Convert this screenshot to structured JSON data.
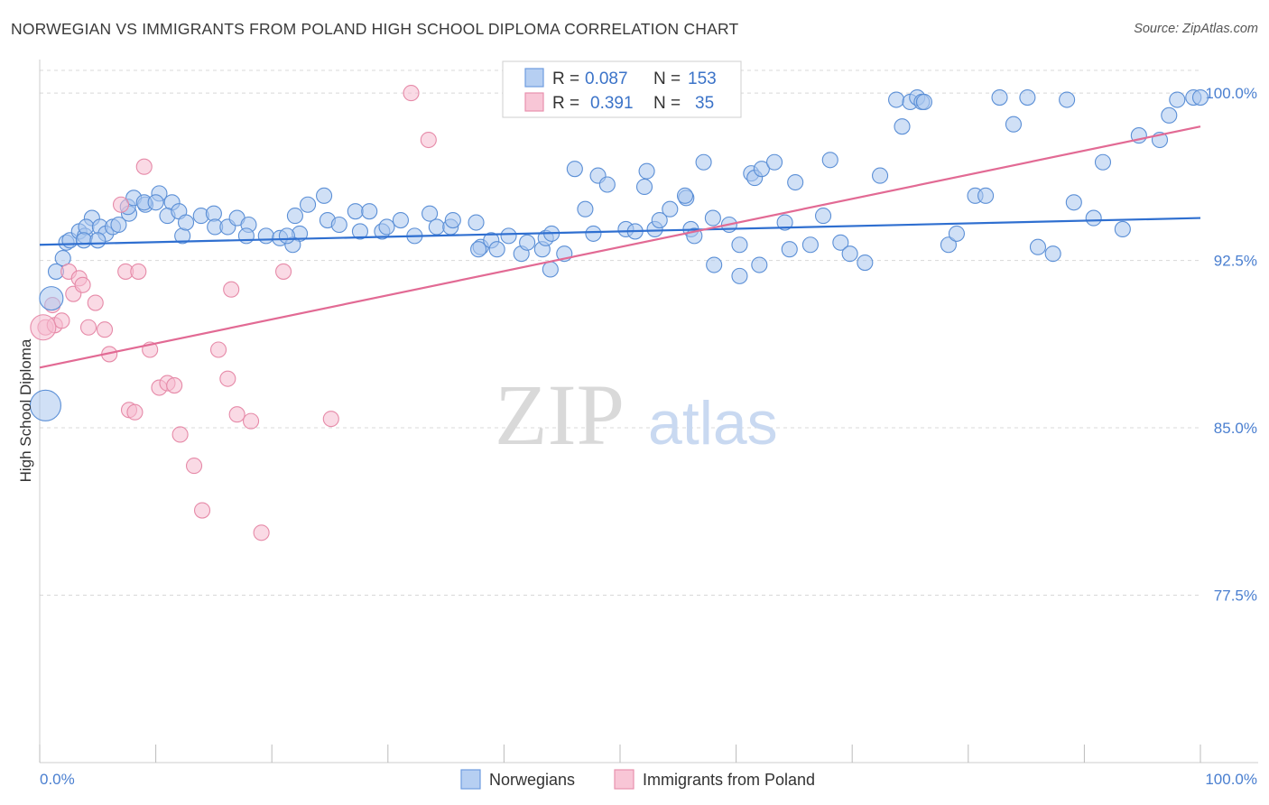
{
  "title": "NORWEGIAN VS IMMIGRANTS FROM POLAND HIGH SCHOOL DIPLOMA CORRELATION CHART",
  "source": "Source: ZipAtlas.com",
  "watermark": {
    "zip": "ZIP",
    "atlas": "atlas"
  },
  "colors": {
    "blue_fill": "#a9c6ef",
    "blue_stroke": "#5b8fd6",
    "blue_line": "#2f6fd0",
    "pink_fill": "#f6bcd0",
    "pink_stroke": "#e68aa8",
    "pink_line": "#e26a94",
    "grid": "#d8d8d8",
    "axis_text": "#4a7fd0"
  },
  "stats_box": {
    "rows": [
      {
        "r_label": "R =",
        "r_value": "0.087",
        "n_label": "N =",
        "n_value": "153"
      },
      {
        "r_label": "R =",
        "r_value": "0.391",
        "n_label": "N =",
        "n_value": "35"
      }
    ]
  },
  "chart_data": {
    "type": "scatter",
    "title": "NORWEGIAN VS IMMIGRANTS FROM POLAND HIGH SCHOOL DIPLOMA CORRELATION CHART",
    "xlabel": "",
    "ylabel": "High School Diploma",
    "xlim": [
      0,
      100
    ],
    "ylim": [
      70,
      101.5
    ],
    "x_tick_labels": [
      "0.0%",
      "100.0%"
    ],
    "y_ticks": [
      77.5,
      85.0,
      92.5,
      100.0
    ],
    "y_tick_labels": [
      "77.5%",
      "85.0%",
      "92.5%",
      "100.0%"
    ],
    "grid": true,
    "legend_position": "bottom-center",
    "series": [
      {
        "name": "Norwegians",
        "trend": {
          "x": [
            0,
            100
          ],
          "y": [
            93.2,
            94.4
          ]
        },
        "points": [
          [
            2.3,
            93.3
          ],
          [
            2.6,
            93.4
          ],
          [
            2.0,
            92.6
          ],
          [
            1.4,
            92.0
          ],
          [
            3.4,
            93.8
          ],
          [
            4.5,
            94.4
          ],
          [
            3.9,
            93.6
          ],
          [
            4.0,
            94.0
          ],
          [
            5.2,
            94.0
          ],
          [
            5.7,
            93.7
          ],
          [
            3.8,
            93.4
          ],
          [
            6.3,
            94.0
          ],
          [
            5.0,
            93.4
          ],
          [
            6.8,
            94.1
          ],
          [
            7.7,
            94.6
          ],
          [
            7.6,
            94.9
          ],
          [
            8.1,
            95.3
          ],
          [
            9.1,
            95.0
          ],
          [
            9.0,
            95.1
          ],
          [
            10.3,
            95.5
          ],
          [
            10.0,
            95.1
          ],
          [
            11.4,
            95.1
          ],
          [
            11.0,
            94.5
          ],
          [
            12.0,
            94.7
          ],
          [
            12.3,
            93.6
          ],
          [
            12.6,
            94.2
          ],
          [
            13.9,
            94.5
          ],
          [
            15.0,
            94.6
          ],
          [
            15.1,
            94.0
          ],
          [
            16.2,
            94.0
          ],
          [
            17.0,
            94.4
          ],
          [
            18.0,
            94.1
          ],
          [
            17.8,
            93.6
          ],
          [
            19.5,
            93.6
          ],
          [
            20.7,
            93.5
          ],
          [
            22.4,
            93.7
          ],
          [
            21.8,
            93.2
          ],
          [
            21.3,
            93.6
          ],
          [
            22.0,
            94.5
          ],
          [
            23.1,
            95.0
          ],
          [
            24.5,
            95.4
          ],
          [
            24.8,
            94.3
          ],
          [
            25.8,
            94.1
          ],
          [
            27.6,
            93.8
          ],
          [
            27.2,
            94.7
          ],
          [
            28.4,
            94.7
          ],
          [
            29.5,
            93.8
          ],
          [
            29.9,
            94.0
          ],
          [
            31.1,
            94.3
          ],
          [
            32.3,
            93.6
          ],
          [
            33.6,
            94.6
          ],
          [
            34.2,
            94.0
          ],
          [
            35.4,
            94.0
          ],
          [
            35.6,
            94.3
          ],
          [
            37.6,
            94.2
          ],
          [
            38.0,
            93.1
          ],
          [
            37.8,
            93.0
          ],
          [
            38.9,
            93.4
          ],
          [
            39.4,
            93.0
          ],
          [
            40.4,
            93.6
          ],
          [
            41.5,
            92.8
          ],
          [
            42.0,
            93.3
          ],
          [
            43.3,
            93.0
          ],
          [
            43.6,
            93.5
          ],
          [
            44.1,
            93.7
          ],
          [
            44.0,
            92.1
          ],
          [
            45.2,
            92.8
          ],
          [
            46.1,
            96.6
          ],
          [
            47.7,
            93.7
          ],
          [
            47.0,
            94.8
          ],
          [
            48.1,
            96.3
          ],
          [
            48.9,
            95.9
          ],
          [
            50.5,
            93.9
          ],
          [
            51.3,
            93.8
          ],
          [
            52.3,
            96.5
          ],
          [
            52.1,
            95.8
          ],
          [
            53.0,
            93.9
          ],
          [
            53.4,
            94.3
          ],
          [
            54.3,
            94.8
          ],
          [
            55.7,
            95.3
          ],
          [
            55.6,
            95.4
          ],
          [
            56.1,
            93.9
          ],
          [
            56.4,
            93.6
          ],
          [
            57.2,
            96.9
          ],
          [
            58.0,
            94.4
          ],
          [
            58.1,
            92.3
          ],
          [
            59.4,
            94.1
          ],
          [
            60.3,
            91.8
          ],
          [
            60.3,
            93.2
          ],
          [
            61.3,
            96.4
          ],
          [
            61.6,
            96.2
          ],
          [
            62.0,
            92.3
          ],
          [
            62.2,
            96.6
          ],
          [
            63.3,
            96.9
          ],
          [
            64.2,
            94.2
          ],
          [
            64.6,
            93.0
          ],
          [
            65.1,
            96.0
          ],
          [
            66.4,
            93.2
          ],
          [
            67.5,
            94.5
          ],
          [
            68.1,
            97.0
          ],
          [
            69.0,
            93.3
          ],
          [
            69.8,
            92.8
          ],
          [
            71.1,
            92.4
          ],
          [
            72.4,
            96.3
          ],
          [
            73.8,
            99.7
          ],
          [
            74.3,
            98.5
          ],
          [
            75.0,
            99.6
          ],
          [
            75.6,
            99.8
          ],
          [
            76.0,
            99.6
          ],
          [
            76.2,
            99.6
          ],
          [
            78.3,
            93.2
          ],
          [
            79.0,
            93.7
          ],
          [
            80.6,
            95.4
          ],
          [
            81.5,
            95.4
          ],
          [
            82.7,
            99.8
          ],
          [
            83.9,
            98.6
          ],
          [
            85.1,
            99.8
          ],
          [
            86.0,
            93.1
          ],
          [
            87.3,
            92.8
          ],
          [
            88.5,
            99.7
          ],
          [
            89.1,
            95.1
          ],
          [
            90.8,
            94.4
          ],
          [
            91.6,
            96.9
          ],
          [
            93.3,
            93.9
          ],
          [
            94.7,
            98.1
          ],
          [
            96.5,
            97.9
          ],
          [
            97.3,
            99.0
          ],
          [
            98.0,
            99.7
          ],
          [
            99.4,
            99.8
          ],
          [
            100.0,
            99.8
          ]
        ]
      },
      {
        "name": "Immigrants from Poland",
        "trend": {
          "x": [
            0,
            100
          ],
          "y": [
            87.7,
            98.5
          ]
        },
        "points": [
          [
            0.5,
            89.5
          ],
          [
            1.1,
            90.5
          ],
          [
            1.3,
            89.6
          ],
          [
            1.9,
            89.8
          ],
          [
            2.5,
            92.0
          ],
          [
            2.9,
            91.0
          ],
          [
            3.4,
            91.7
          ],
          [
            3.7,
            91.4
          ],
          [
            4.2,
            89.5
          ],
          [
            4.8,
            90.6
          ],
          [
            5.6,
            89.4
          ],
          [
            6.0,
            88.3
          ],
          [
            7.0,
            95.0
          ],
          [
            7.4,
            92.0
          ],
          [
            7.7,
            85.8
          ],
          [
            8.2,
            85.7
          ],
          [
            8.5,
            92.0
          ],
          [
            9.0,
            96.7
          ],
          [
            9.5,
            88.5
          ],
          [
            10.3,
            86.8
          ],
          [
            11.0,
            87.0
          ],
          [
            11.6,
            86.9
          ],
          [
            12.1,
            84.7
          ],
          [
            13.3,
            83.3
          ],
          [
            14.0,
            81.3
          ],
          [
            15.4,
            88.5
          ],
          [
            16.2,
            87.2
          ],
          [
            16.5,
            91.2
          ],
          [
            17.0,
            85.6
          ],
          [
            18.2,
            85.3
          ],
          [
            19.1,
            80.3
          ],
          [
            21.0,
            92.0
          ],
          [
            25.1,
            85.4
          ],
          [
            32.0,
            100.0
          ],
          [
            33.5,
            97.9
          ]
        ]
      }
    ]
  },
  "legend": {
    "items": [
      {
        "label": "Norwegians"
      },
      {
        "label": "Immigrants from Poland"
      }
    ]
  }
}
